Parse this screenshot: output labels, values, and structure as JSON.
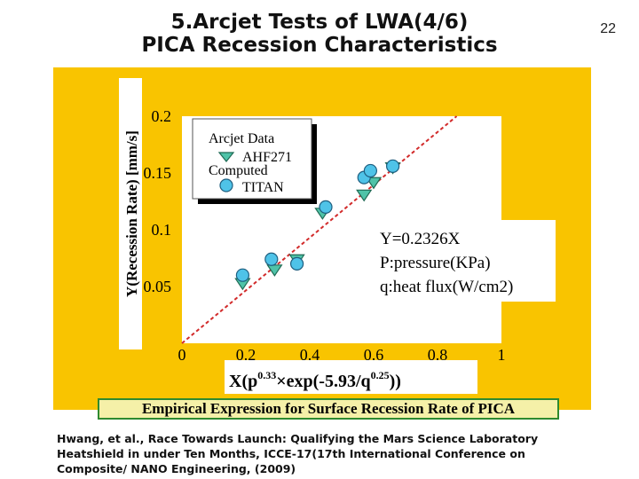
{
  "slide": {
    "title_line1": "5.Arcjet Tests of LWA(4/6)",
    "title_line2": "PICA Recession Characteristics",
    "page_number": "22",
    "caption": "Empirical Expression for Surface Recession Rate of PICA",
    "citation": "Hwang, et al., Race Towards Launch: Qualifying the Mars Science Laboratory Heatshield in under Ten Months, ICCE-17(17th International Conference on Composite/ NANO Engineering, (2009)",
    "panel_color": "#f9c400"
  },
  "chart_data": {
    "type": "scatter",
    "ylabel": "Y(Recession Rate) [mm/s]",
    "xlabel": {
      "prefix": "X(p",
      "exp1": "0.33",
      "mid": "×exp(-5.93/q",
      "exp2": "0.25",
      "suffix": "))"
    },
    "xlim": [
      0,
      1
    ],
    "ylim": [
      0,
      0.2
    ],
    "x_ticks": [
      "0",
      "0.2",
      "0.4",
      "0.6",
      "0.8",
      "1"
    ],
    "y_ticks": [
      "0.2",
      "0.15",
      "0.1",
      "0.05"
    ],
    "y_tick_values": [
      0.2,
      0.15,
      0.1,
      0.05
    ],
    "legend": {
      "heading1": "Arcjet Data",
      "label1": "AHF271",
      "heading2": "Computed",
      "label2": "TITAN",
      "position": "top-left"
    },
    "fit": {
      "slope": 0.2326,
      "equation": "Y=0.2326X",
      "note1": "P:pressure(KPa)",
      "note2": "q:heat flux(W/cm2)"
    },
    "series": [
      {
        "name": "AHF271",
        "marker": "triangle",
        "color": "#4fc3a8",
        "points": [
          [
            0.19,
            0.053
          ],
          [
            0.29,
            0.065
          ],
          [
            0.36,
            0.074
          ],
          [
            0.44,
            0.115
          ],
          [
            0.57,
            0.131
          ],
          [
            0.6,
            0.142
          ],
          [
            0.66,
            0.155
          ]
        ]
      },
      {
        "name": "TITAN",
        "marker": "circle",
        "color": "#4fc3e8",
        "points": [
          [
            0.19,
            0.06
          ],
          [
            0.28,
            0.074
          ],
          [
            0.36,
            0.07
          ],
          [
            0.45,
            0.12
          ],
          [
            0.57,
            0.146
          ],
          [
            0.59,
            0.152
          ],
          [
            0.66,
            0.156
          ]
        ]
      }
    ]
  }
}
